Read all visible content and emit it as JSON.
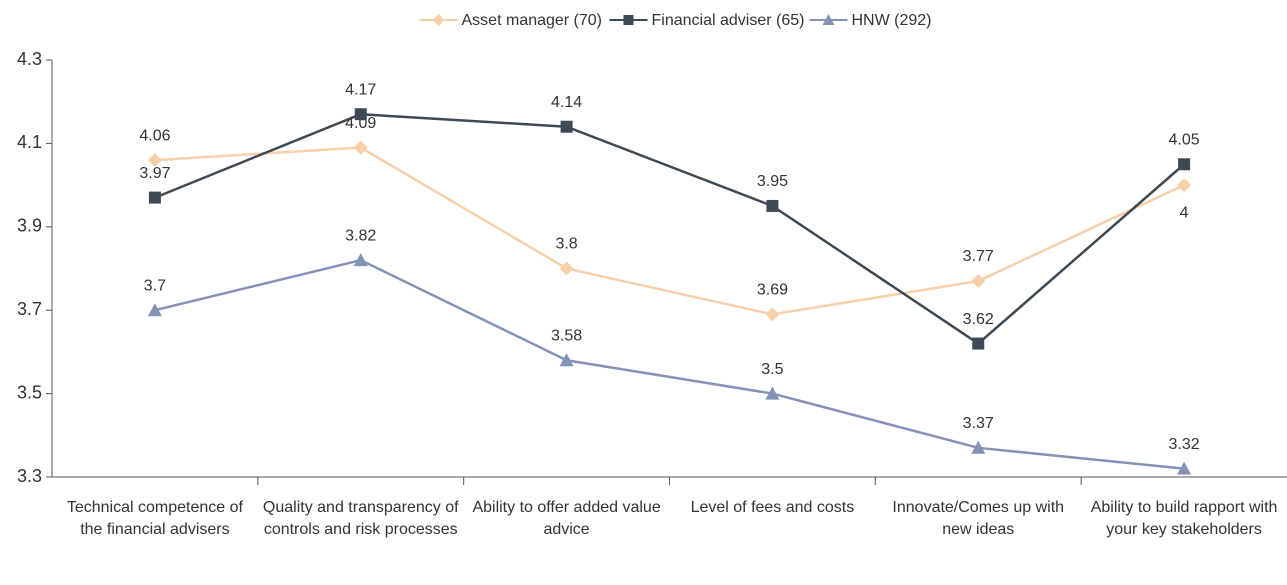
{
  "chart_data": {
    "type": "line",
    "categories": [
      "Technical competence of the financial advisers",
      "Quality and transparency of controls and risk processes",
      "Ability to offer added value advice",
      "Level of fees and costs",
      "Innovate/Comes up with new ideas",
      "Ability to build rapport with your key stakeholders"
    ],
    "series": [
      {
        "name": "Asset manager (70)",
        "color": "#f9cfaa",
        "marker": "diamond",
        "values": [
          4.06,
          4.09,
          3.8,
          3.69,
          3.77,
          4
        ]
      },
      {
        "name": "Financial adviser (65)",
        "color": "#3d4a55",
        "marker": "square",
        "values": [
          3.97,
          4.17,
          4.14,
          3.95,
          3.62,
          4.05
        ]
      },
      {
        "name": "HNW (292)",
        "color": "#8393b5",
        "marker": "triangle",
        "values": [
          3.7,
          3.82,
          3.58,
          3.5,
          3.37,
          3.32
        ]
      }
    ],
    "ylim": [
      3.3,
      4.3
    ],
    "yticks": [
      3.3,
      3.5,
      3.7,
      3.9,
      4.1,
      4.3
    ],
    "grid": false,
    "legend": "top"
  }
}
